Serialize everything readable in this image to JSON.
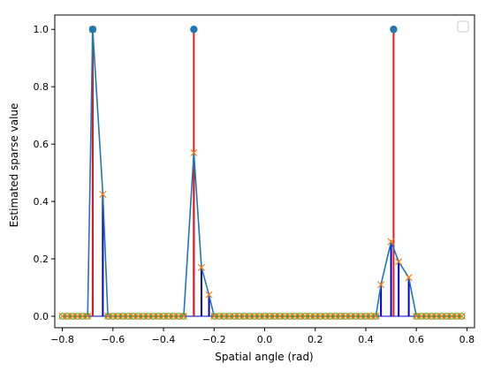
{
  "chart_data": {
    "type": "scatter",
    "xlabel": "Spatial angle (rad)",
    "ylabel": "Estimated sparse value",
    "xlim": [
      -0.83,
      0.83
    ],
    "ylim": [
      -0.04,
      1.05
    ],
    "xticks": [
      -0.8,
      -0.6,
      -0.4,
      -0.2,
      0.0,
      0.2,
      0.4,
      0.6,
      0.8
    ],
    "xtick_labels": [
      "−0.8",
      "−0.6",
      "−0.4",
      "−0.2",
      "0.0",
      "0.2",
      "0.4",
      "0.6",
      "0.8"
    ],
    "yticks": [
      0.0,
      0.2,
      0.4,
      0.6,
      0.8,
      1.0
    ],
    "ytick_labels": [
      "0.0",
      "0.2",
      "0.4",
      "0.6",
      "0.8",
      "1.0"
    ],
    "legend": {
      "placement": "top-right",
      "entries": []
    },
    "colors": {
      "true_stem": "#e31a1c",
      "true_marker": "#1f77b4",
      "estimate_stem": "#0000cc",
      "estimate_line": "#1f77b4",
      "estimate_marker": "#ff7f0e",
      "zero_marker": "#2ca02c"
    },
    "series": [
      {
        "type": "stem",
        "x": [
          -0.68,
          -0.28,
          0.51
        ],
        "values": [
          1.0,
          1.0,
          1.0
        ]
      },
      {
        "type": "stem_line_markers",
        "x": [
          -0.8,
          -0.78,
          -0.76,
          -0.74,
          -0.72,
          -0.7,
          -0.68,
          -0.64,
          -0.62,
          -0.6,
          -0.58,
          -0.56,
          -0.54,
          -0.52,
          -0.5,
          -0.48,
          -0.46,
          -0.44,
          -0.42,
          -0.4,
          -0.38,
          -0.36,
          -0.34,
          -0.32,
          -0.28,
          -0.25,
          -0.22,
          -0.2,
          -0.18,
          -0.16,
          -0.14,
          -0.12,
          -0.1,
          -0.08,
          -0.06,
          -0.04,
          -0.02,
          0.0,
          0.02,
          0.04,
          0.06,
          0.08,
          0.1,
          0.12,
          0.14,
          0.16,
          0.18,
          0.2,
          0.22,
          0.24,
          0.26,
          0.28,
          0.3,
          0.32,
          0.34,
          0.36,
          0.38,
          0.4,
          0.42,
          0.44,
          0.46,
          0.5,
          0.53,
          0.57,
          0.6,
          0.62,
          0.64,
          0.66,
          0.68,
          0.7,
          0.72,
          0.74,
          0.76,
          0.78
        ],
        "values": [
          0,
          0,
          0,
          0,
          0,
          0,
          1.0,
          0.425,
          0,
          0,
          0,
          0,
          0,
          0,
          0,
          0,
          0,
          0,
          0,
          0,
          0,
          0,
          0,
          0,
          0.57,
          0.17,
          0.075,
          0,
          0,
          0,
          0,
          0,
          0,
          0,
          0,
          0,
          0,
          0,
          0,
          0,
          0,
          0,
          0,
          0,
          0,
          0,
          0,
          0,
          0,
          0,
          0,
          0,
          0,
          0,
          0,
          0,
          0,
          0,
          0,
          0,
          0.11,
          0.26,
          0.19,
          0.135,
          0,
          0,
          0,
          0,
          0,
          0,
          0,
          0,
          0,
          0
        ]
      }
    ]
  }
}
